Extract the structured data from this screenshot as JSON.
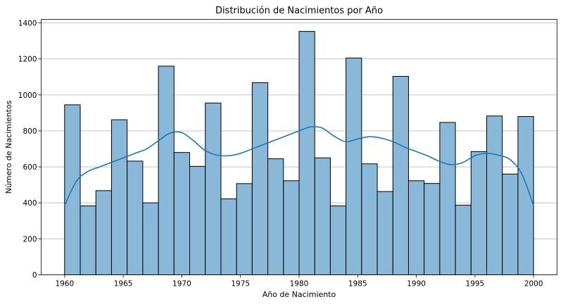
{
  "chart_data": {
    "type": "bar",
    "title": "Distribución de Nacimientos por Año",
    "xlabel": "Año de Nacimiento",
    "ylabel": "Número de Nacimientos",
    "xlim": [
      1958,
      2002
    ],
    "ylim": [
      0,
      1420
    ],
    "xticks": [
      1960,
      1965,
      1970,
      1975,
      1980,
      1985,
      1990,
      1995,
      2000
    ],
    "yticks": [
      0,
      200,
      400,
      600,
      800,
      1000,
      1200,
      1400
    ],
    "grid": "horizontal",
    "bin_start": 1960,
    "bin_end": 2000,
    "values": [
      945,
      383,
      468,
      862,
      632,
      400,
      1160,
      680,
      603,
      955,
      422,
      507,
      1068,
      645,
      523,
      1353,
      650,
      383,
      1205,
      617,
      463,
      1103,
      523,
      508,
      847,
      387,
      685,
      883,
      560,
      880
    ],
    "kde": {
      "name": "",
      "x": [
        1960,
        1961,
        1962,
        1963,
        1964,
        1965,
        1966,
        1967,
        1968,
        1969,
        1970,
        1971,
        1972,
        1973,
        1974,
        1975,
        1976,
        1977,
        1978,
        1979,
        1980,
        1981,
        1982,
        1983,
        1984,
        1985,
        1986,
        1987,
        1988,
        1989,
        1990,
        1991,
        1992,
        1993,
        1994,
        1995,
        1996,
        1997,
        1998,
        1999,
        2000
      ],
      "y": [
        385,
        520,
        575,
        600,
        625,
        650,
        675,
        700,
        745,
        788,
        790,
        745,
        690,
        665,
        662,
        675,
        700,
        725,
        750,
        775,
        800,
        822,
        815,
        770,
        740,
        755,
        768,
        760,
        740,
        710,
        685,
        660,
        630,
        612,
        625,
        662,
        675,
        665,
        640,
        560,
        385
      ]
    }
  }
}
